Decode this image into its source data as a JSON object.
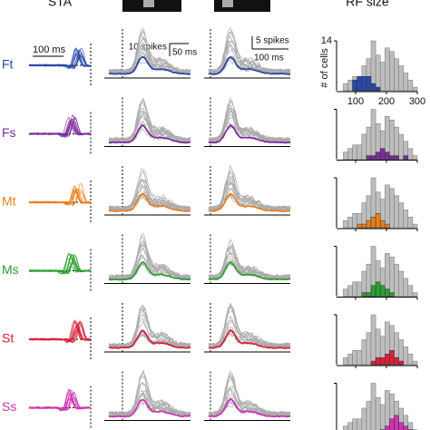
{
  "header": {
    "sta": "STA",
    "rf": "RF size"
  },
  "scales": {
    "sta_time": "100 ms",
    "psth1_spikes": "10 spikes",
    "psth1_time": "50 ms",
    "psth2_spikes": "5 spikes",
    "psth2_time": "100 ms"
  },
  "rows": [
    {
      "label": "Ft",
      "color": "#2b48a8"
    },
    {
      "label": "Fs",
      "color": "#7b2a9c"
    },
    {
      "label": "Mt",
      "color": "#e8801c"
    },
    {
      "label": "Ms",
      "color": "#2a9e2f"
    },
    {
      "label": "St",
      "color": "#d8213a"
    },
    {
      "label": "Ss",
      "color": "#cf33b3"
    }
  ],
  "chart_data": {
    "type": "histogram",
    "ylabel": "# of cells",
    "xlim": [
      50,
      300
    ],
    "ylim": [
      0,
      14
    ],
    "xticks": [
      100,
      200,
      300
    ],
    "yticks": [
      14
    ],
    "bins": [
      60,
      75,
      90,
      105,
      120,
      135,
      150,
      165,
      180,
      195,
      210,
      225,
      240,
      255,
      270,
      285,
      300
    ],
    "all_counts": [
      2,
      3,
      4,
      4,
      7,
      9,
      14,
      10,
      8,
      12,
      11,
      9,
      7,
      5,
      3,
      1
    ],
    "series": [
      {
        "name": "Ft",
        "values": [
          0,
          0,
          3,
          4,
          4,
          4,
          2,
          1,
          0,
          0,
          0,
          0,
          0,
          0,
          0,
          0
        ]
      },
      {
        "name": "Fs",
        "values": [
          0,
          0,
          0,
          0,
          0,
          1,
          1,
          2,
          3,
          2,
          1,
          1,
          0,
          1,
          0,
          0
        ]
      },
      {
        "name": "Mt",
        "values": [
          0,
          0,
          0,
          1,
          1,
          2,
          3,
          4,
          2,
          1,
          0,
          0,
          0,
          0,
          0,
          0
        ]
      },
      {
        "name": "Ms",
        "values": [
          0,
          0,
          0,
          0,
          1,
          1,
          3,
          4,
          3,
          2,
          1,
          0,
          0,
          0,
          0,
          0
        ]
      },
      {
        "name": "St",
        "values": [
          0,
          0,
          0,
          0,
          0,
          0,
          1,
          2,
          2,
          3,
          4,
          2,
          1,
          0,
          0,
          0
        ]
      },
      {
        "name": "Ss",
        "values": [
          0,
          0,
          0,
          0,
          0,
          0,
          0,
          0,
          1,
          2,
          4,
          5,
          3,
          2,
          1,
          0
        ]
      }
    ]
  }
}
